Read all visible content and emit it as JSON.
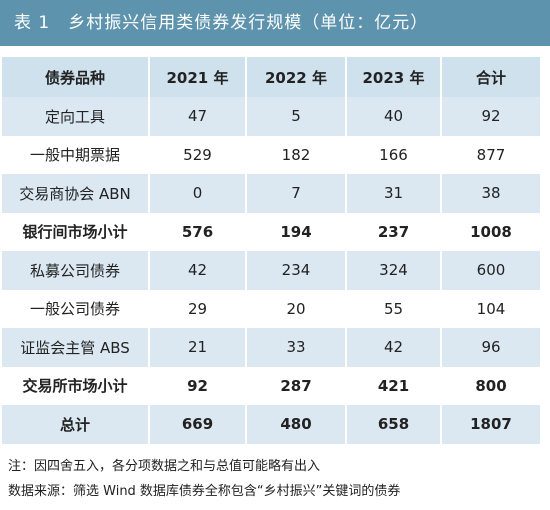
{
  "header": {
    "title": "表 1　乡村振兴信用类债券发行规模（单位：亿元）"
  },
  "table": {
    "columns": [
      "债券品种",
      "2021 年",
      "2022 年",
      "2023 年",
      "合计"
    ],
    "rows": [
      [
        "定向工具",
        47,
        5,
        40,
        92
      ],
      [
        "一般中期票据",
        529,
        182,
        166,
        877
      ],
      [
        "交易商协会 ABN",
        0,
        7,
        31,
        38
      ],
      [
        "银行间市场小计",
        576,
        194,
        237,
        1008
      ],
      [
        "私募公司债券",
        42,
        234,
        324,
        600
      ],
      [
        "一般公司债券",
        29,
        20,
        55,
        104
      ],
      [
        "证监会主管 ABS",
        21,
        33,
        42,
        96
      ],
      [
        "交易所市场小计",
        92,
        287,
        421,
        800
      ],
      [
        "总计",
        669,
        480,
        658,
        1807
      ]
    ]
  },
  "notes": [
    "注：因四舍五入，各分项数据之和与总值可能略有出入",
    "数据来源：筛选 Wind 数据库债券全称包含“乡村振兴”关键词的债券"
  ]
}
